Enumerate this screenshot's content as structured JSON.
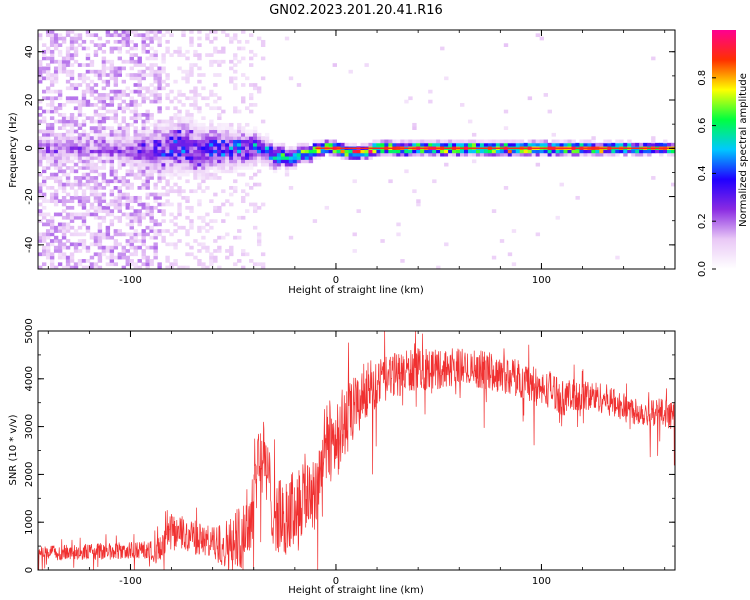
{
  "title": "GN02.2023.201.20.41.R16",
  "chart_data": [
    {
      "type": "heatmap",
      "xlabel": "Height of straight line (km)",
      "ylabel": "Frequency (Hz)",
      "xlim": [
        -145,
        165
      ],
      "ylim": [
        -50,
        49
      ],
      "x_ticks": [
        -100,
        0,
        100
      ],
      "x_tick_labels": [
        "-100",
        "0",
        "100"
      ],
      "y_ticks": [
        -40,
        -20,
        0,
        20,
        40
      ],
      "y_tick_labels": [
        "-40",
        "-20",
        "0",
        "20",
        "40"
      ],
      "colorbar": {
        "label": "Normalized spectral amplitude",
        "range": [
          0,
          1
        ],
        "ticks": [
          0,
          0.2,
          0.4,
          0.6,
          0.8
        ],
        "tick_labels": [
          "0.0",
          "0.2",
          "0.4",
          "0.6",
          "0.8"
        ],
        "colormap": [
          "#ffffff",
          "#e9c8f6",
          "#8a2be2",
          "#2000ff",
          "#00c8ff",
          "#00ff40",
          "#ffff00",
          "#ff3000",
          "#ff0090"
        ]
      },
      "description_points": {
        "noise_region_x": [
          -145,
          -35
        ],
        "band_center_freq_hz": [
          [
            -105,
            0
          ],
          [
            -95,
            -1
          ],
          [
            -85,
            0
          ],
          [
            -75,
            1
          ],
          [
            -65,
            -1
          ],
          [
            -55,
            0
          ],
          [
            -45,
            1
          ],
          [
            -38,
            0
          ],
          [
            -30,
            -3
          ],
          [
            -20,
            -4
          ],
          [
            -12,
            -1
          ],
          [
            -5,
            1
          ],
          [
            0,
            0
          ],
          [
            10,
            -2
          ],
          [
            20,
            0
          ],
          [
            40,
            0
          ],
          [
            60,
            0
          ],
          [
            80,
            0
          ],
          [
            100,
            0
          ],
          [
            120,
            0
          ],
          [
            140,
            0
          ],
          [
            165,
            0
          ]
        ],
        "band_halfwidth_hz": [
          [
            -105,
            3
          ],
          [
            -90,
            5
          ],
          [
            -75,
            6
          ],
          [
            -60,
            5
          ],
          [
            -45,
            4
          ],
          [
            -35,
            3
          ],
          [
            -20,
            2
          ],
          [
            -5,
            1.5
          ],
          [
            40,
            1.5
          ],
          [
            100,
            1.5
          ],
          [
            165,
            1.2
          ]
        ],
        "band_peak_amplitude": [
          [
            -105,
            0.25
          ],
          [
            -90,
            0.35
          ],
          [
            -75,
            0.45
          ],
          [
            -60,
            0.45
          ],
          [
            -45,
            0.5
          ],
          [
            -35,
            0.5
          ],
          [
            -20,
            0.6
          ],
          [
            -5,
            0.85
          ],
          [
            20,
            0.85
          ],
          [
            60,
            0.85
          ],
          [
            100,
            0.85
          ],
          [
            165,
            0.75
          ]
        ]
      }
    },
    {
      "type": "line",
      "xlabel": "Height of straight line (km)",
      "ylabel": "SNR (10 * v/v)",
      "xlim": [
        -145,
        165
      ],
      "ylim": [
        0,
        5000
      ],
      "x_ticks": [
        -100,
        0,
        100
      ],
      "x_tick_labels": [
        "-100",
        "0",
        "100"
      ],
      "y_ticks": [
        0,
        1000,
        2000,
        3000,
        4000,
        5000
      ],
      "y_tick_labels": [
        "0",
        "1000",
        "2000",
        "3000",
        "4000",
        "5000"
      ],
      "color": "#f03030",
      "envelope": {
        "x": [
          -145,
          -120,
          -100,
          -85,
          -80,
          -70,
          -60,
          -50,
          -42,
          -38,
          -35,
          -30,
          -25,
          -20,
          -15,
          -10,
          -5,
          0,
          5,
          10,
          15,
          20,
          25,
          30,
          40,
          50,
          60,
          70,
          80,
          90,
          95,
          100,
          105,
          110,
          120,
          130,
          140,
          150,
          160,
          165
        ],
        "y": [
          350,
          380,
          400,
          420,
          800,
          700,
          550,
          550,
          1000,
          2400,
          2300,
          1200,
          1000,
          1300,
          1600,
          1700,
          2600,
          2800,
          3100,
          3400,
          3800,
          3900,
          4000,
          4100,
          4200,
          4200,
          4250,
          4200,
          4100,
          4000,
          3900,
          3750,
          3800,
          3600,
          3650,
          3600,
          3400,
          3300,
          3300,
          3200
        ]
      },
      "noise_amplitude": {
        "x": [
          -145,
          -90,
          -80,
          -60,
          -40,
          -30,
          -10,
          0,
          20,
          60,
          100,
          140,
          165
        ],
        "y": [
          150,
          200,
          400,
          350,
          900,
          800,
          900,
          900,
          500,
          400,
          400,
          300,
          300
        ]
      }
    }
  ]
}
